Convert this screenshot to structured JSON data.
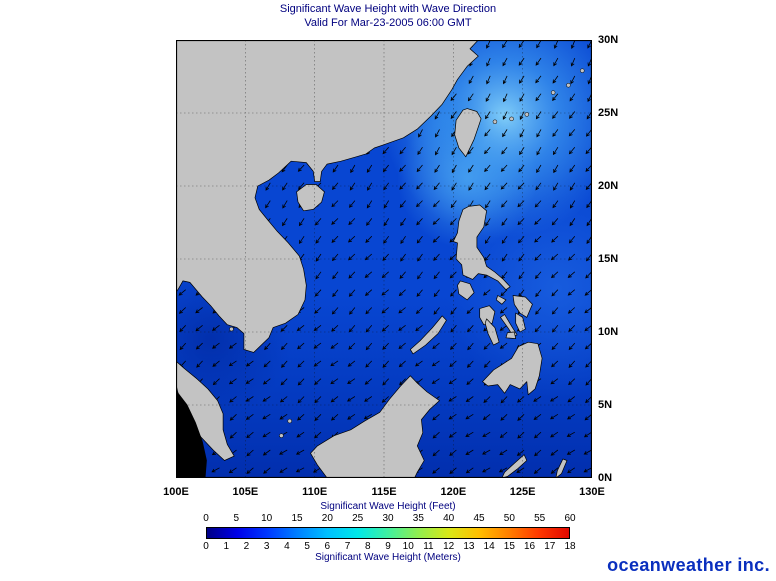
{
  "chart": {
    "title": "Significant Wave Height with Wave Direction",
    "subtitle": "Valid For Mar-23-2005 06:00 GMT"
  },
  "branding": {
    "logo_text": "oceanweather inc."
  },
  "chart_data": {
    "type": "heatmap",
    "title": "Significant Wave Height with Wave Direction",
    "subtitle": "Valid For Mar-23-2005 06:00 GMT",
    "region": "South China Sea, Philippine Sea and surrounding waters",
    "x_axis": {
      "ticks": [
        "100E",
        "105E",
        "110E",
        "115E",
        "120E",
        "125E",
        "130E"
      ],
      "range_deg_east": [
        100,
        130
      ],
      "gridline_interval_deg": 5
    },
    "y_axis": {
      "ticks": [
        "30N",
        "25N",
        "20N",
        "15N",
        "10N",
        "5N",
        "0N"
      ],
      "range_deg_north": [
        0,
        30
      ],
      "gridline_interval_deg": 5
    },
    "grid": "dotted black lat/lon graticule every 5 degrees",
    "overlay": "wave direction arrows on ~1.2 degree grid, waves from the northeast (arrows point southwest)",
    "land_color": "#c3c3c3",
    "ocean_base_color": "#0846d2",
    "title_color": "#00007f",
    "colorbar": {
      "feet_label": "Significant Wave Height (Feet)",
      "feet_ticks": [
        0,
        5,
        10,
        15,
        20,
        25,
        30,
        35,
        40,
        45,
        50,
        55,
        60
      ],
      "meters_label": "Significant Wave Height (Meters)",
      "meters_ticks": [
        0,
        1,
        2,
        3,
        4,
        5,
        6,
        7,
        8,
        9,
        10,
        11,
        12,
        13,
        14,
        15,
        16,
        17,
        18
      ],
      "colors": [
        "#000085",
        "#0000e8",
        "#0038ff",
        "#0080ff",
        "#00c0ff",
        "#00e8e8",
        "#40f0a0",
        "#90ee50",
        "#d8e818",
        "#ffc000",
        "#ff8000",
        "#ff3800",
        "#e00800"
      ]
    },
    "approx_values_ft": [
      {
        "area": "Philippine Sea / Luzon Strait (northeast quadrant)",
        "significant_wave_height_ft": "8-12"
      },
      {
        "area": "East China Sea north and east of Taiwan",
        "significant_wave_height_ft": "6-10"
      },
      {
        "area": "Central South China Sea",
        "significant_wave_height_ft": "4-7"
      },
      {
        "area": "Southern South China Sea / Gulf of Thailand",
        "significant_wave_height_ft": "1-4"
      },
      {
        "area": "Sulu and Celebes Seas",
        "significant_wave_height_ft": "1-3"
      }
    ]
  }
}
